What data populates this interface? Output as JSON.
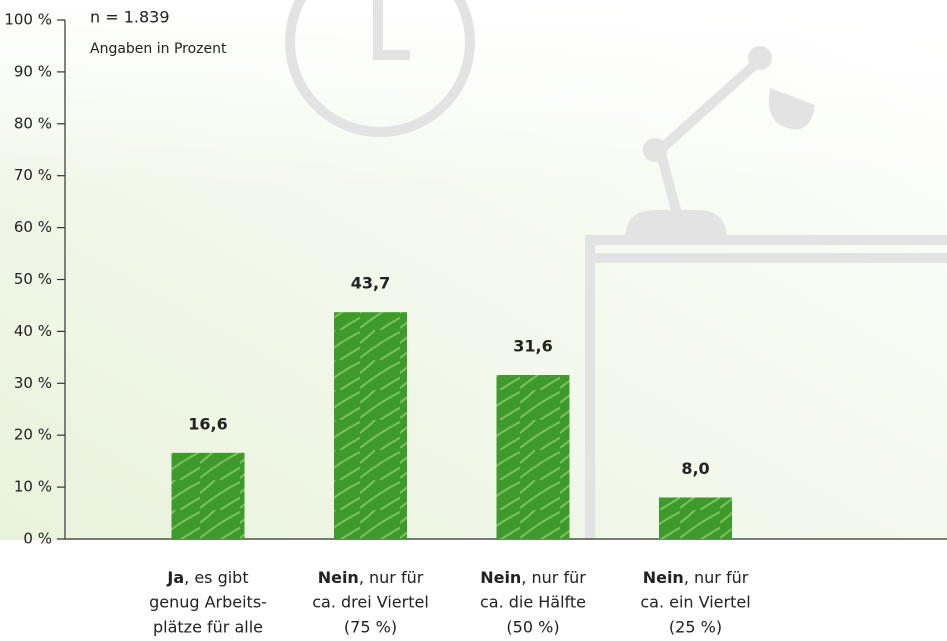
{
  "chart_data": {
    "type": "bar",
    "annotations": [
      "n = 1.839",
      "Angaben in Prozent"
    ],
    "categories": [
      {
        "bold": "Ja",
        "lines": [
          ", es gibt",
          "genug Arbeits-",
          "plätze für alle"
        ]
      },
      {
        "bold": "Nein",
        "lines": [
          ", nur für",
          "ca. drei Viertel",
          "(75 %)"
        ]
      },
      {
        "bold": "Nein",
        "lines": [
          ", nur für",
          "ca. die Hälfte",
          "(50 %)"
        ]
      },
      {
        "bold": "Nein",
        "lines": [
          ", nur für",
          "ca. ein Viertel",
          "(25 %)"
        ]
      }
    ],
    "values": [
      16.6,
      43.7,
      31.6,
      8.0
    ],
    "value_labels": [
      "16,6",
      "43,7",
      "31,6",
      "8,0"
    ],
    "color": "#3f9a2c",
    "ylim": [
      0,
      100
    ],
    "yticks": [
      {
        "value": 0,
        "label": "0 %"
      },
      {
        "value": 10,
        "label": "10 %"
      },
      {
        "value": 20,
        "label": "20 %"
      },
      {
        "value": 30,
        "label": "30 %"
      },
      {
        "value": 40,
        "label": "40 %"
      },
      {
        "value": 50,
        "label": "50 %"
      },
      {
        "value": 60,
        "label": "60 %"
      },
      {
        "value": 70,
        "label": "70 %"
      },
      {
        "value": 80,
        "label": "80 %"
      },
      {
        "value": 90,
        "label": "90 %"
      },
      {
        "value": 100,
        "label": "100 %"
      }
    ]
  }
}
